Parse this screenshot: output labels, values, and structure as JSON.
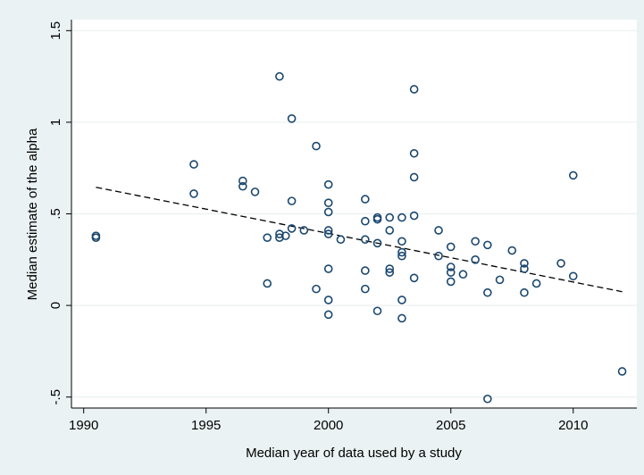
{
  "chart_data": {
    "type": "scatter",
    "title": "",
    "xlabel": "Median year of data used by a study",
    "ylabel": "Median estimate of the alpha",
    "xlim": [
      1989.5,
      2012.6
    ],
    "ylim": [
      -0.56,
      1.56
    ],
    "x_ticks": [
      1990,
      1995,
      2000,
      2005,
      2010
    ],
    "x_tick_labels": [
      "1990",
      "1995",
      "2000",
      "2005",
      "2010"
    ],
    "y_ticks": [
      -0.5,
      0,
      0.5,
      1,
      1.5
    ],
    "y_tick_labels": [
      "-.5",
      "0",
      ".5",
      "1",
      "1.5"
    ],
    "grid": "horizontal",
    "legend": "none",
    "colors": {
      "outer_background": "#eaf2f3",
      "plot_background": "#ffffff",
      "gridline": "#e6eeef",
      "marker_stroke": "#1a476f",
      "fit_line": "#000000"
    },
    "fit_line": {
      "style": "dashed",
      "x": [
        1990.5,
        2012.0
      ],
      "y": [
        0.645,
        0.075
      ]
    },
    "series": [
      {
        "marker": "hollow-circle",
        "points": [
          [
            1990.5,
            0.38
          ],
          [
            1990.5,
            0.37
          ],
          [
            1994.5,
            0.77
          ],
          [
            1994.5,
            0.61
          ],
          [
            1996.5,
            0.68
          ],
          [
            1996.5,
            0.65
          ],
          [
            1997,
            0.62
          ],
          [
            1997.5,
            0.37
          ],
          [
            1997.5,
            0.12
          ],
          [
            1998,
            1.25
          ],
          [
            1998,
            0.39
          ],
          [
            1998,
            0.37
          ],
          [
            1998.25,
            0.38
          ],
          [
            1998.5,
            1.02
          ],
          [
            1998.5,
            0.57
          ],
          [
            1998.5,
            0.42
          ],
          [
            1999,
            0.41
          ],
          [
            1999.5,
            0.87
          ],
          [
            1999.5,
            0.09
          ],
          [
            2000,
            0.66
          ],
          [
            2000,
            0.56
          ],
          [
            2000,
            0.51
          ],
          [
            2000,
            0.41
          ],
          [
            2000,
            0.39
          ],
          [
            2000,
            0.2
          ],
          [
            2000,
            0.03
          ],
          [
            2000,
            -0.05
          ],
          [
            2000.5,
            0.36
          ],
          [
            2001.5,
            0.58
          ],
          [
            2001.5,
            0.46
          ],
          [
            2001.5,
            0.36
          ],
          [
            2001.5,
            0.19
          ],
          [
            2001.5,
            0.09
          ],
          [
            2002,
            0.48
          ],
          [
            2002,
            0.47
          ],
          [
            2002,
            0.34
          ],
          [
            2002,
            -0.03
          ],
          [
            2002.5,
            0.48
          ],
          [
            2002.5,
            0.41
          ],
          [
            2002.5,
            0.2
          ],
          [
            2002.5,
            0.18
          ],
          [
            2003,
            0.48
          ],
          [
            2003,
            0.35
          ],
          [
            2003,
            0.29
          ],
          [
            2003,
            0.27
          ],
          [
            2003,
            0.03
          ],
          [
            2003,
            -0.07
          ],
          [
            2003.5,
            1.18
          ],
          [
            2003.5,
            0.83
          ],
          [
            2003.5,
            0.7
          ],
          [
            2003.5,
            0.49
          ],
          [
            2003.5,
            0.15
          ],
          [
            2004.5,
            0.41
          ],
          [
            2004.5,
            0.27
          ],
          [
            2005,
            0.32
          ],
          [
            2005,
            0.21
          ],
          [
            2005,
            0.18
          ],
          [
            2005,
            0.13
          ],
          [
            2005.5,
            0.17
          ],
          [
            2006,
            0.35
          ],
          [
            2006,
            0.25
          ],
          [
            2006.5,
            0.33
          ],
          [
            2006.5,
            0.07
          ],
          [
            2006.5,
            -0.51
          ],
          [
            2007,
            0.14
          ],
          [
            2007.5,
            0.3
          ],
          [
            2008,
            0.23
          ],
          [
            2008,
            0.2
          ],
          [
            2008,
            0.07
          ],
          [
            2008.5,
            0.12
          ],
          [
            2009.5,
            0.23
          ],
          [
            2010,
            0.71
          ],
          [
            2010,
            0.16
          ],
          [
            2012,
            -0.36
          ]
        ]
      }
    ]
  }
}
